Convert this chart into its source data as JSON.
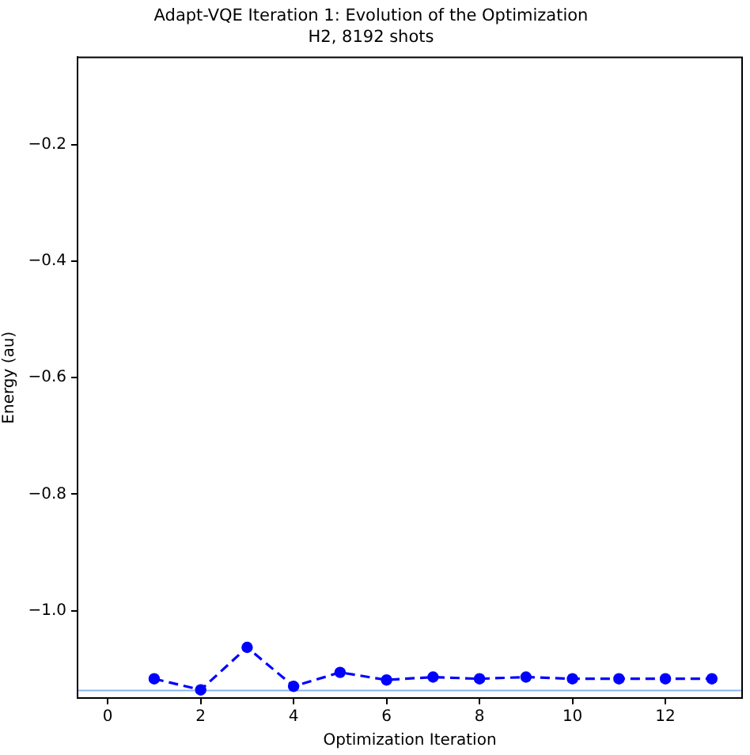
{
  "chart_data": {
    "type": "line",
    "title": "Adapt-VQE Iteration 1: Evolution of the Optimization",
    "subtitle": "H2, 8192 shots",
    "xlabel": "Optimization Iteration",
    "ylabel": "Energy (au)",
    "x": [
      1,
      2,
      3,
      4,
      5,
      6,
      7,
      8,
      9,
      10,
      11,
      12,
      13
    ],
    "series": [
      {
        "color": "#0000ff",
        "values": [
          -1.117,
          -1.136,
          -1.063,
          -1.13,
          -1.106,
          -1.119,
          -1.114,
          -1.117,
          -1.114,
          -1.117,
          -1.117,
          -1.117,
          -1.117
        ]
      }
    ],
    "xlim": [
      -0.65,
      13.65
    ],
    "xticks": [
      0,
      2,
      4,
      6,
      8,
      10,
      12
    ],
    "ylim": [
      -1.15,
      -0.05
    ],
    "yticks": [
      {
        "value": -1.0,
        "label": "−1.0"
      },
      {
        "value": -0.8,
        "label": "−0.8"
      },
      {
        "value": -0.6,
        "label": "−0.6"
      },
      {
        "value": -0.4,
        "label": "−0.4"
      },
      {
        "value": -0.2,
        "label": "−0.2"
      }
    ],
    "marker": "circle",
    "line_style": "dashed",
    "ref_lines": [
      {
        "axis": "y",
        "value": -1.137,
        "color": "#8cb4f0"
      }
    ]
  }
}
